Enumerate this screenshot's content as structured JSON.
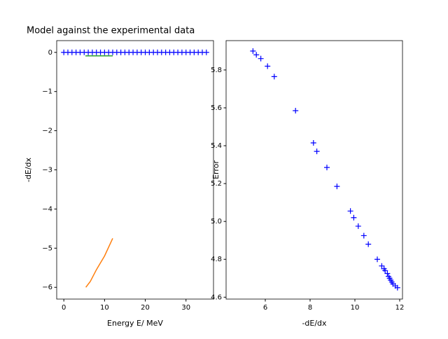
{
  "chart_data": [
    {
      "type": "line",
      "title": "Model against the experimental data",
      "xlabel": "Energy E/ MeV",
      "ylabel": "-dE/dx",
      "xlim": [
        -1.75,
        36.75
      ],
      "ylim": [
        -6.3,
        0.3
      ],
      "xticks": [
        0,
        10,
        20,
        30
      ],
      "yticks": [
        {
          "value": -6,
          "label": "−6"
        },
        {
          "value": -5,
          "label": "−5"
        },
        {
          "value": -4,
          "label": "−4"
        },
        {
          "value": -3,
          "label": "−3"
        },
        {
          "value": -2,
          "label": "−2"
        },
        {
          "value": -1,
          "label": "−1"
        },
        0
      ],
      "series": [
        {
          "color": "#0000ff",
          "marker": "+",
          "x": [
            0,
            1,
            2,
            3,
            4,
            5,
            6,
            7,
            8,
            9,
            10,
            11,
            12,
            13,
            14,
            15,
            16,
            17,
            18,
            19,
            20,
            21,
            22,
            23,
            24,
            25,
            26,
            27,
            28,
            29,
            30,
            31,
            32,
            33,
            34,
            35
          ],
          "values": [
            0,
            0,
            0,
            0,
            0,
            0,
            0,
            0,
            0,
            0,
            0,
            0,
            0,
            0,
            0,
            0,
            0,
            0,
            0,
            0,
            0,
            0,
            0,
            0,
            0,
            0,
            0,
            0,
            0,
            0,
            0,
            0,
            0,
            0,
            0,
            0
          ]
        },
        {
          "color": "#2ca02c",
          "x": [
            5.3,
            12
          ],
          "values": [
            -0.09,
            -0.09
          ]
        },
        {
          "color": "#ff7f0e",
          "x": [
            5.4,
            6.5,
            8,
            10,
            12
          ],
          "values": [
            -6.0,
            -5.85,
            -5.55,
            -5.2,
            -4.75
          ]
        }
      ]
    },
    {
      "type": "scatter",
      "xlabel": "-dE/dx",
      "ylabel": "Error",
      "xlim": [
        4.25,
        12.125
      ],
      "ylim": [
        4.59,
        5.955
      ],
      "xticks": [
        6,
        8,
        10,
        12
      ],
      "yticks": [
        4.6,
        4.8,
        {
          "value": 5,
          "label": "5.0"
        },
        5.2,
        5.4,
        5.6,
        5.8
      ],
      "series": [
        {
          "color": "#0000ff",
          "marker": "+",
          "x": [
            5.45,
            5.6,
            5.8,
            6.1,
            6.4,
            7.35,
            8.15,
            8.3,
            8.75,
            9.2,
            9.8,
            9.95,
            10.15,
            10.4,
            10.6,
            11.0,
            11.2,
            11.3,
            11.35,
            11.45,
            11.5,
            11.55,
            11.6,
            11.65,
            11.7,
            11.8,
            11.9
          ],
          "values": [
            5.9,
            5.88,
            5.86,
            5.82,
            5.765,
            5.585,
            5.415,
            5.37,
            5.285,
            5.185,
            5.055,
            5.02,
            4.975,
            4.925,
            4.88,
            4.8,
            4.765,
            4.75,
            4.74,
            4.725,
            4.71,
            4.7,
            4.69,
            4.68,
            4.67,
            4.66,
            4.65
          ]
        }
      ]
    }
  ]
}
